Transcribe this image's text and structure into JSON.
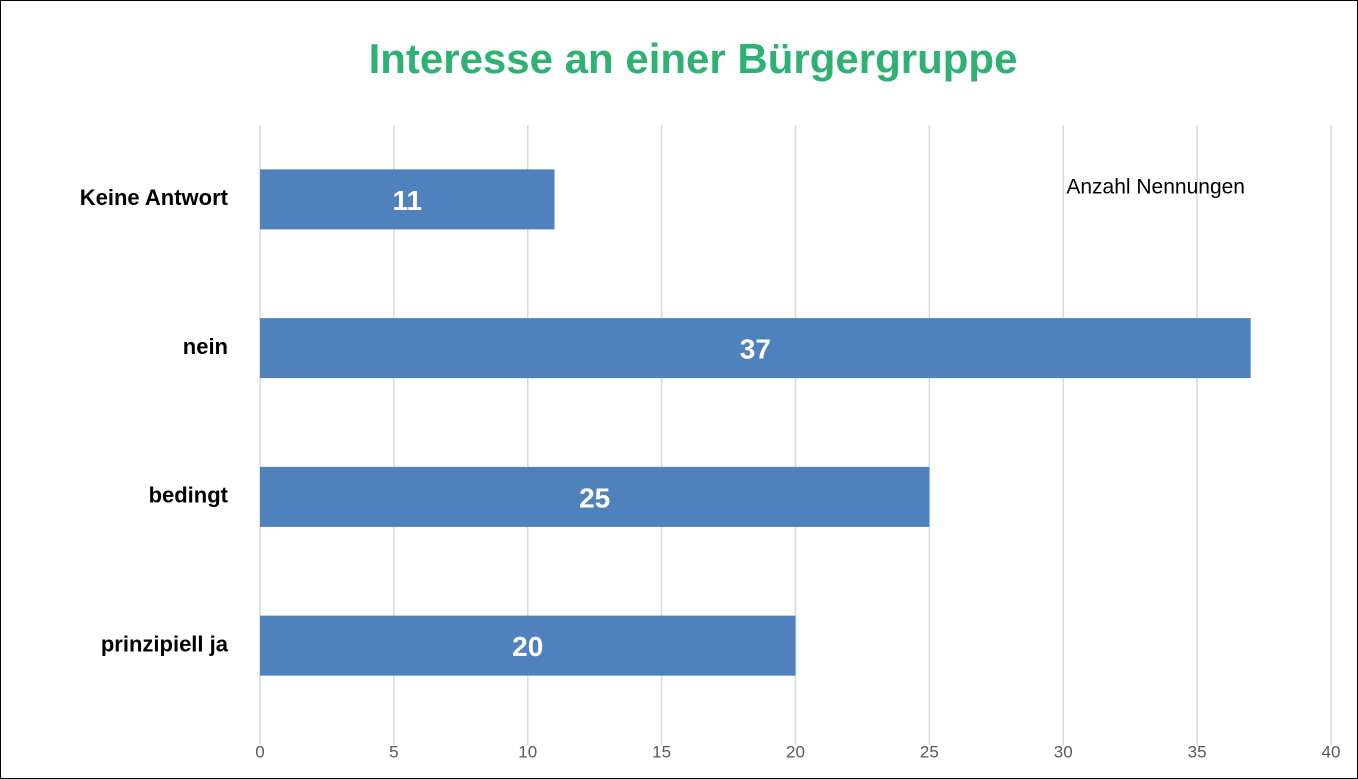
{
  "chart_data": {
    "type": "bar",
    "orientation": "horizontal",
    "title": "Interesse an einer Bürgergruppe",
    "categories": [
      "Keine Antwort",
      "nein",
      "bedingt",
      "prinzipiell ja"
    ],
    "series": [
      {
        "name": "Anzahl Nennungen",
        "color": "#4f81bd",
        "values": [
          11,
          37,
          25,
          20
        ]
      }
    ],
    "xlim": [
      0,
      40
    ],
    "xticks": [
      0,
      5,
      10,
      15,
      20,
      25,
      30,
      35,
      40
    ],
    "grid": true,
    "legend": "top-right",
    "title_color": "#2eb274"
  }
}
